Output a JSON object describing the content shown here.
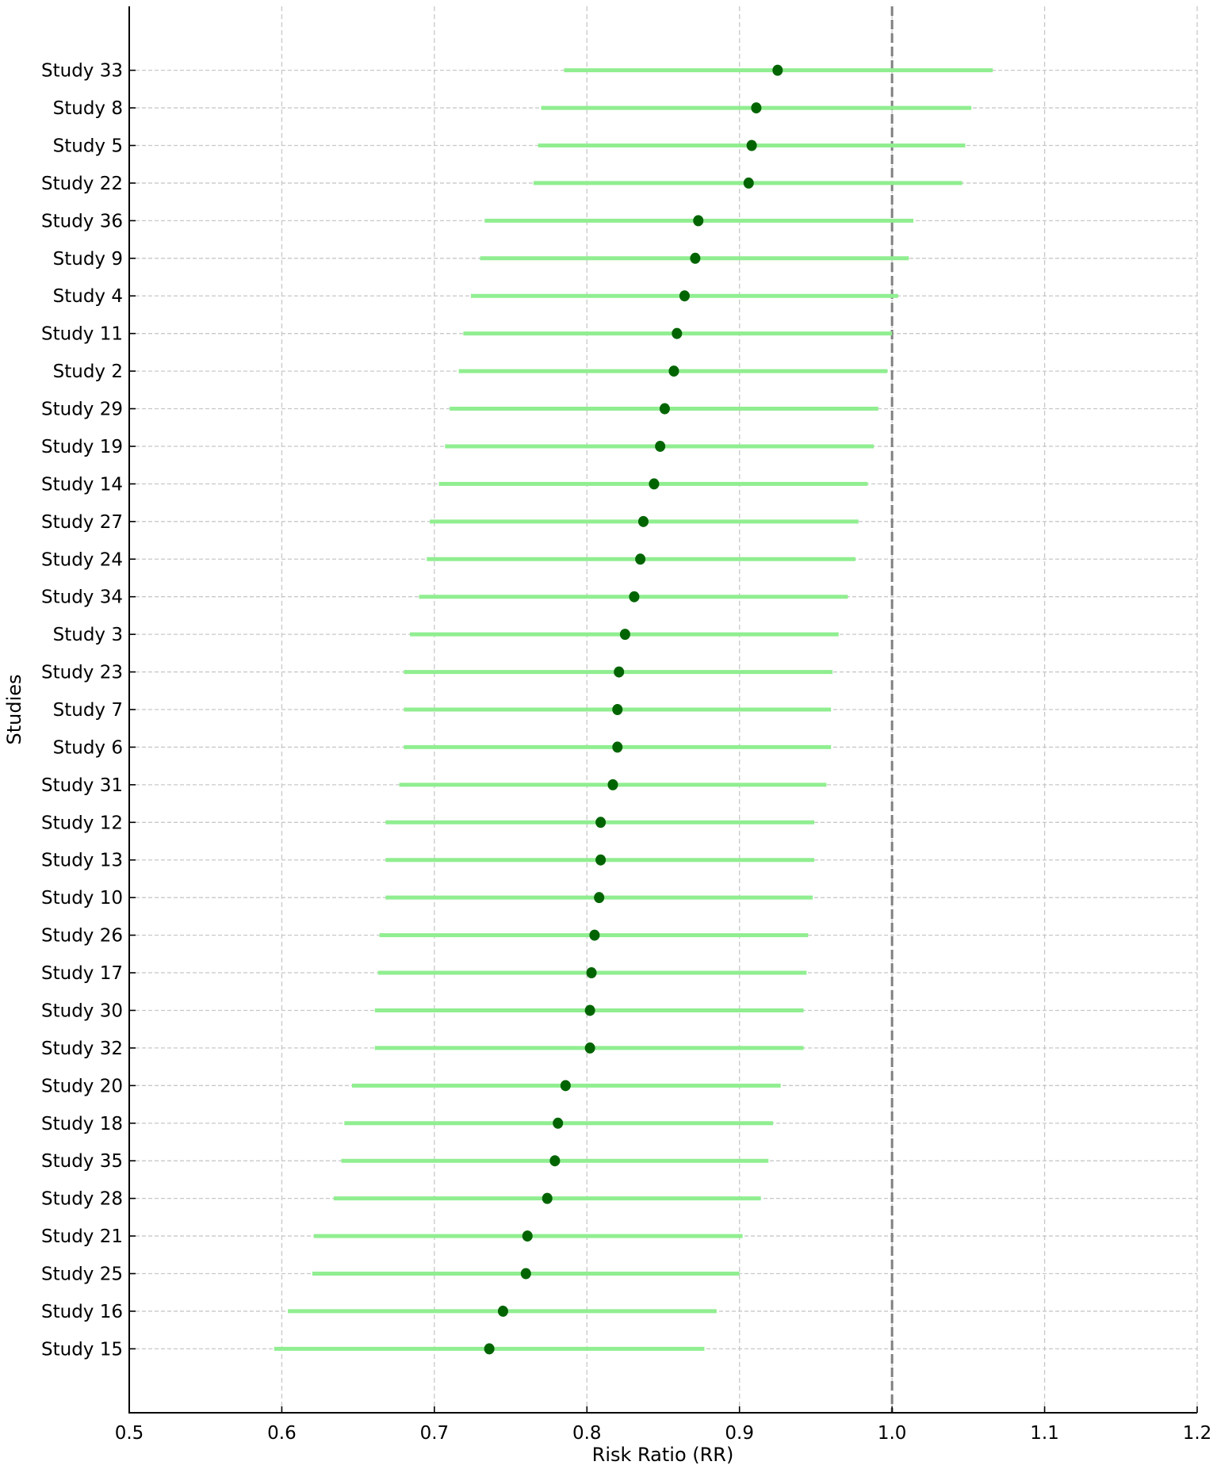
{
  "chart_data": {
    "type": "forest",
    "title": "",
    "xlabel": "Risk Ratio (RR)",
    "ylabel": "Studies",
    "xlim": [
      0.5,
      1.2
    ],
    "xticks": [
      0.5,
      0.6,
      0.7,
      0.8,
      0.9,
      1.0,
      1.1,
      1.2
    ],
    "xtick_labels": [
      "0.5",
      "0.6",
      "0.7",
      "0.8",
      "0.9",
      "1.0",
      "1.1",
      "1.2"
    ],
    "reference_line": 1.0,
    "grid": true,
    "legend": null,
    "colors": {
      "ci_line": "#90ee90",
      "point": "#006400",
      "reference_line": "#808080",
      "grid": "#c8c8c8",
      "axis": "#000000"
    },
    "studies": [
      {
        "label": "Study 33",
        "rr": 0.925,
        "ci_low": 0.785,
        "ci_high": 1.066
      },
      {
        "label": "Study 8",
        "rr": 0.911,
        "ci_low": 0.77,
        "ci_high": 1.052
      },
      {
        "label": "Study 5",
        "rr": 0.908,
        "ci_low": 0.768,
        "ci_high": 1.048
      },
      {
        "label": "Study 22",
        "rr": 0.906,
        "ci_low": 0.765,
        "ci_high": 1.046
      },
      {
        "label": "Study 36",
        "rr": 0.873,
        "ci_low": 0.733,
        "ci_high": 1.014
      },
      {
        "label": "Study 9",
        "rr": 0.871,
        "ci_low": 0.73,
        "ci_high": 1.011
      },
      {
        "label": "Study 4",
        "rr": 0.864,
        "ci_low": 0.724,
        "ci_high": 1.004
      },
      {
        "label": "Study 11",
        "rr": 0.859,
        "ci_low": 0.719,
        "ci_high": 1.0
      },
      {
        "label": "Study 2",
        "rr": 0.857,
        "ci_low": 0.716,
        "ci_high": 0.997
      },
      {
        "label": "Study 29",
        "rr": 0.851,
        "ci_low": 0.71,
        "ci_high": 0.991
      },
      {
        "label": "Study 19",
        "rr": 0.848,
        "ci_low": 0.707,
        "ci_high": 0.988
      },
      {
        "label": "Study 14",
        "rr": 0.844,
        "ci_low": 0.703,
        "ci_high": 0.984
      },
      {
        "label": "Study 27",
        "rr": 0.837,
        "ci_low": 0.697,
        "ci_high": 0.978
      },
      {
        "label": "Study 24",
        "rr": 0.835,
        "ci_low": 0.695,
        "ci_high": 0.976
      },
      {
        "label": "Study 34",
        "rr": 0.831,
        "ci_low": 0.69,
        "ci_high": 0.971
      },
      {
        "label": "Study 3",
        "rr": 0.825,
        "ci_low": 0.684,
        "ci_high": 0.965
      },
      {
        "label": "Study 23",
        "rr": 0.821,
        "ci_low": 0.68,
        "ci_high": 0.961
      },
      {
        "label": "Study 7",
        "rr": 0.82,
        "ci_low": 0.68,
        "ci_high": 0.96
      },
      {
        "label": "Study 6",
        "rr": 0.82,
        "ci_low": 0.68,
        "ci_high": 0.96
      },
      {
        "label": "Study 31",
        "rr": 0.817,
        "ci_low": 0.677,
        "ci_high": 0.957
      },
      {
        "label": "Study 12",
        "rr": 0.809,
        "ci_low": 0.668,
        "ci_high": 0.949
      },
      {
        "label": "Study 13",
        "rr": 0.809,
        "ci_low": 0.668,
        "ci_high": 0.949
      },
      {
        "label": "Study 10",
        "rr": 0.808,
        "ci_low": 0.668,
        "ci_high": 0.948
      },
      {
        "label": "Study 26",
        "rr": 0.805,
        "ci_low": 0.664,
        "ci_high": 0.945
      },
      {
        "label": "Study 17",
        "rr": 0.803,
        "ci_low": 0.663,
        "ci_high": 0.944
      },
      {
        "label": "Study 30",
        "rr": 0.802,
        "ci_low": 0.661,
        "ci_high": 0.942
      },
      {
        "label": "Study 32",
        "rr": 0.802,
        "ci_low": 0.661,
        "ci_high": 0.942
      },
      {
        "label": "Study 20",
        "rr": 0.786,
        "ci_low": 0.646,
        "ci_high": 0.927
      },
      {
        "label": "Study 18",
        "rr": 0.781,
        "ci_low": 0.641,
        "ci_high": 0.922
      },
      {
        "label": "Study 35",
        "rr": 0.779,
        "ci_low": 0.639,
        "ci_high": 0.919
      },
      {
        "label": "Study 28",
        "rr": 0.774,
        "ci_low": 0.634,
        "ci_high": 0.914
      },
      {
        "label": "Study 21",
        "rr": 0.761,
        "ci_low": 0.621,
        "ci_high": 0.902
      },
      {
        "label": "Study 25",
        "rr": 0.76,
        "ci_low": 0.62,
        "ci_high": 0.9
      },
      {
        "label": "Study 16",
        "rr": 0.745,
        "ci_low": 0.604,
        "ci_high": 0.885
      },
      {
        "label": "Study 15",
        "rr": 0.736,
        "ci_low": 0.595,
        "ci_high": 0.877
      }
    ]
  }
}
